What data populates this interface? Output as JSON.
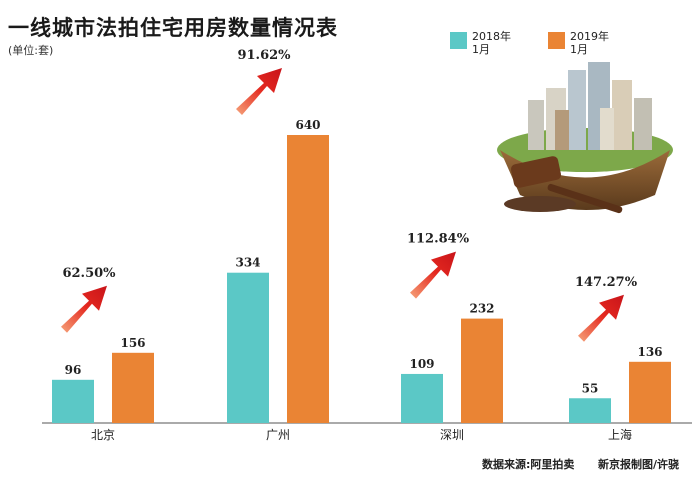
{
  "title": "一线城市法拍住宅用房数量情况表",
  "unit": "(单位:套)",
  "colors": {
    "series_2018": "#5bc8c6",
    "series_2019": "#ea8434",
    "arrow": "#e0231f"
  },
  "chart_data": {
    "type": "bar",
    "categories": [
      "北京",
      "广州",
      "深圳",
      "上海"
    ],
    "series": [
      {
        "name": "2018年1月",
        "values": [
          96,
          334,
          109,
          55
        ]
      },
      {
        "name": "2019年1月",
        "values": [
          156,
          640,
          232,
          136
        ]
      }
    ],
    "growth_labels": [
      "62.50%",
      "91.62%",
      "112.84%",
      "147.27%"
    ],
    "legend": {
      "series_2018": [
        "2018年",
        "1月"
      ],
      "series_2019": [
        "2019年",
        "1月"
      ],
      "position": "top-right"
    },
    "ylim": [
      0,
      640
    ],
    "grid": false
  },
  "footer": {
    "source": "数据来源:阿里拍卖",
    "credit": "新京报制图/许骁"
  },
  "icons": {
    "illustration": "city-auction-illustration",
    "gavel": "gavel-icon"
  }
}
